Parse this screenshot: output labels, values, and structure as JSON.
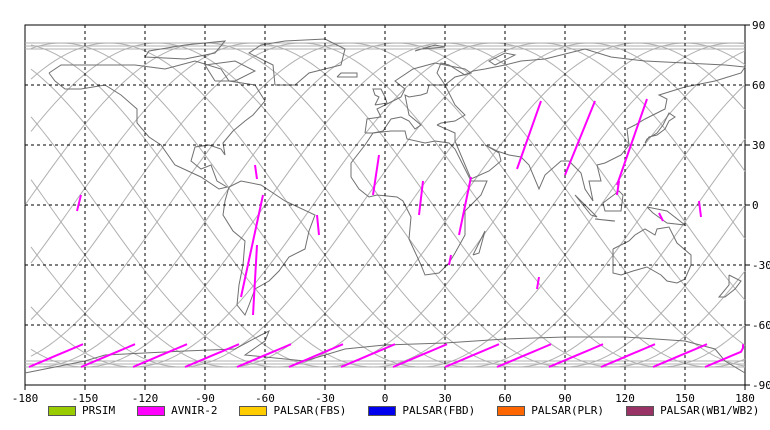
{
  "map": {
    "x_ticks": [
      "-180",
      "-150",
      "-120",
      "-90",
      "-60",
      "-30",
      "0",
      "30",
      "60",
      "90",
      "120",
      "150",
      "180"
    ],
    "y_ticks": [
      "90",
      "60",
      "30",
      "0",
      "-30",
      "-60",
      "-90"
    ],
    "colors": {
      "grid": "#000000",
      "orbit": "#b0b0b0",
      "coast": "#707070",
      "swath": "#ff00ff"
    }
  },
  "legend": [
    {
      "label": "PRSIM",
      "color": "#99cc00"
    },
    {
      "label": "AVNIR-2",
      "color": "#ff00ff"
    },
    {
      "label": "PALSAR(FBS)",
      "color": "#ffcc00"
    },
    {
      "label": "PALSAR(FBD)",
      "color": "#0000ee"
    },
    {
      "label": "PALSAR(PLR)",
      "color": "#ff6600"
    },
    {
      "label": "PALSAR(WB1/WB2)",
      "color": "#993366"
    }
  ],
  "chart_data": {
    "type": "map",
    "xlim": [
      -180,
      180
    ],
    "ylim": [
      -90,
      90
    ],
    "x_ticks": [
      -180,
      -150,
      -120,
      -90,
      -60,
      -30,
      0,
      30,
      60,
      90,
      120,
      150,
      180
    ],
    "y_ticks": [
      90,
      60,
      30,
      0,
      -30,
      -60,
      -90
    ],
    "grid": true,
    "legend_placement": "bottom",
    "series": [
      {
        "name": "AVNIR-2",
        "color": "#ff00ff",
        "segments": [
          [
            [
              -154,
              -3
            ],
            [
              -152,
              5
            ]
          ],
          [
            [
              -61,
              5
            ],
            [
              -72,
              -46
            ]
          ],
          [
            [
              -64,
              -20
            ],
            [
              -66,
              -55
            ]
          ],
          [
            [
              -33,
              -15
            ],
            [
              -34,
              -5
            ]
          ],
          [
            [
              -65,
              20
            ],
            [
              -64,
              13
            ]
          ],
          [
            [
              -6,
              5
            ],
            [
              -3,
              25
            ]
          ],
          [
            [
              17,
              -5
            ],
            [
              19,
              12
            ]
          ],
          [
            [
              37,
              -15
            ],
            [
              43,
              14
            ]
          ],
          [
            [
              32,
              -30
            ],
            [
              33,
              -25
            ]
          ],
          [
            [
              66,
              18
            ],
            [
              78,
              52
            ]
          ],
          [
            [
              76,
              -42
            ],
            [
              77,
              -36
            ]
          ],
          [
            [
              90,
              15
            ],
            [
              105,
              52
            ]
          ],
          [
            [
              116,
              10
            ],
            [
              131,
              53
            ]
          ],
          [
            [
              116,
              5
            ],
            [
              117,
              12
            ]
          ],
          [
            [
              139,
              -8
            ],
            [
              137,
              -4
            ]
          ],
          [
            [
              157,
              2
            ],
            [
              158,
              -6
            ]
          ]
        ]
      }
    ]
  }
}
